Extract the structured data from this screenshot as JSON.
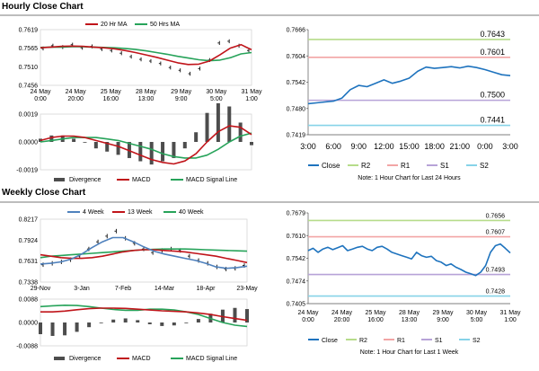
{
  "hourly": {
    "title": "Hourly Close Chart"
  },
  "weekly": {
    "title": "Weekly Close Chart"
  },
  "colors": {
    "ma_fast": "#c0141a",
    "ma_slow": "#27a35a",
    "signal": "#27a35a",
    "macd": "#c0141a",
    "close": "#1e73be",
    "r2": "#b6dc8a",
    "r1": "#f2a5a5",
    "s1": "#b7a3d8",
    "s2": "#86d3e8",
    "histogram": "#4d4d4d",
    "four_week": "#4f81bd",
    "thirteen_week": "#c0141a",
    "forty_week": "#27a35a"
  },
  "chart_data": [
    {
      "id": "hourly_price",
      "type": "line",
      "legend": [
        "20 Hr MA",
        "50 Hrs MA"
      ],
      "ytick_labels": [
        "0.7619",
        "0.7565",
        "0.7510",
        "0.7456"
      ],
      "xtick_labels": [
        [
          "24 May",
          "0:00"
        ],
        [
          "24 May",
          "20:00"
        ],
        [
          "25 May",
          "16:00"
        ],
        [
          "28 May",
          "13:00"
        ],
        [
          "29 May",
          "9:00"
        ],
        [
          "30 May",
          "5:00"
        ],
        [
          "31 May",
          "1:00"
        ]
      ],
      "ylim": [
        0.7456,
        0.7619
      ],
      "series": [
        {
          "name": "20 Hr MA",
          "values": [
            0.7566,
            0.7568,
            0.757,
            0.7571,
            0.757,
            0.7568,
            0.7566,
            0.7563,
            0.7558,
            0.7552,
            0.7545,
            0.7538,
            0.753,
            0.7522,
            0.7517,
            0.7518,
            0.7527,
            0.7545,
            0.7565,
            0.7575,
            0.756
          ]
        },
        {
          "name": "50 Hrs MA",
          "values": [
            0.7567,
            0.7568,
            0.7568,
            0.7569,
            0.7569,
            0.7568,
            0.7567,
            0.7566,
            0.7564,
            0.7561,
            0.7557,
            0.7552,
            0.7547,
            0.7541,
            0.7536,
            0.7531,
            0.7528,
            0.753,
            0.7537,
            0.7548,
            0.7552
          ]
        }
      ],
      "price": [
        0.7564,
        0.7572,
        0.7568,
        0.7575,
        0.7566,
        0.757,
        0.7562,
        0.7558,
        0.755,
        0.754,
        0.7532,
        0.7527,
        0.752,
        0.7508,
        0.75,
        0.749,
        0.7505,
        0.753,
        0.758,
        0.7585,
        0.7572,
        0.7558
      ]
    },
    {
      "id": "hourly_macd",
      "type": "line",
      "ytick_labels": [
        "0.0019",
        "0.0000",
        "-0.0019"
      ],
      "ylim": [
        -0.0019,
        0.0019
      ],
      "legend": [
        "Divergence",
        "MACD",
        "MACD Signal Line"
      ],
      "series": [
        {
          "name": "MACD",
          "values": [
            0.0001,
            0.0003,
            0.0004,
            0.0004,
            0.0003,
            0.0001,
            -0.0001,
            -0.0003,
            -0.0006,
            -0.0009,
            -0.0012,
            -0.0014,
            -0.0015,
            -0.0013,
            -0.0008,
            0.0,
            0.0007,
            0.0011,
            0.001,
            0.0005
          ]
        },
        {
          "name": "MACD Signal Line",
          "values": [
            0.0,
            0.0001,
            0.0002,
            0.0003,
            0.0003,
            0.0003,
            0.0002,
            0.0001,
            -0.0001,
            -0.0003,
            -0.0005,
            -0.0008,
            -0.001,
            -0.0011,
            -0.0011,
            -0.0009,
            -0.0005,
            0.0,
            0.0004,
            0.0006
          ]
        }
      ]
    },
    {
      "id": "hourly_levels",
      "type": "line",
      "ytick_labels": [
        "0.7666",
        "0.7604",
        "0.7542",
        "0.7480",
        "0.7419"
      ],
      "ylim": [
        0.7419,
        0.7666
      ],
      "xtick_labels": [
        "3:00",
        "6:00",
        "9:00",
        "12:00",
        "15:00",
        "18:00",
        "21:00",
        "0:00",
        "3:00"
      ],
      "levels": [
        {
          "name": "R2",
          "value": 0.7643,
          "label": "0.7643"
        },
        {
          "name": "R1",
          "value": 0.7601,
          "label": "0.7601"
        },
        {
          "name": "S1",
          "value": 0.75,
          "label": "0.7500"
        },
        {
          "name": "S2",
          "value": 0.7441,
          "label": "0.7441"
        }
      ],
      "close": [
        0.7492,
        0.7494,
        0.7496,
        0.7498,
        0.7505,
        0.7525,
        0.7535,
        0.7532,
        0.754,
        0.7548,
        0.754,
        0.7545,
        0.7552,
        0.7568,
        0.7578,
        0.7575,
        0.7577,
        0.7579,
        0.7576,
        0.758,
        0.7577,
        0.7572,
        0.7566,
        0.756,
        0.7558
      ],
      "legend": [
        "Close",
        "R2",
        "R1",
        "S1",
        "S2"
      ],
      "note": "Note: 1 Hour Chart for Last 24 Hours"
    },
    {
      "id": "weekly_price",
      "type": "line",
      "legend": [
        "4 Week",
        "13 Week",
        "40 Week"
      ],
      "ytick_labels": [
        "0.8217",
        "0.7924",
        "0.7631",
        "0.7338"
      ],
      "ylim": [
        0.7338,
        0.8217
      ],
      "xtick_labels": [
        "29-Nov",
        "3-Jan",
        "7-Feb",
        "14-Mar",
        "18-Apr",
        "23-May"
      ],
      "series": [
        {
          "name": "4 Week",
          "values": [
            0.759,
            0.76,
            0.762,
            0.766,
            0.773,
            0.782,
            0.79,
            0.796,
            0.796,
            0.79,
            0.783,
            0.777,
            0.773,
            0.77,
            0.767,
            0.764,
            0.76,
            0.755,
            0.753,
            0.754,
            0.756
          ]
        },
        {
          "name": "13 Week",
          "values": [
            0.772,
            0.77,
            0.768,
            0.767,
            0.767,
            0.768,
            0.77,
            0.773,
            0.776,
            0.778,
            0.779,
            0.779,
            0.778,
            0.777,
            0.776,
            0.774,
            0.772,
            0.77,
            0.767,
            0.764,
            0.761
          ]
        },
        {
          "name": "40 Week",
          "values": [
            0.768,
            0.77,
            0.771,
            0.772,
            0.773,
            0.774,
            0.775,
            0.776,
            0.777,
            0.778,
            0.779,
            0.7795,
            0.78,
            0.78,
            0.78,
            0.7795,
            0.779,
            0.7785,
            0.778,
            0.7775,
            0.777
          ]
        }
      ],
      "price": [
        0.758,
        0.76,
        0.762,
        0.765,
        0.77,
        0.78,
        0.79,
        0.798,
        0.805,
        0.795,
        0.788,
        0.78,
        0.775,
        0.778,
        0.78,
        0.778,
        0.77,
        0.764,
        0.76,
        0.755,
        0.752,
        0.753,
        0.757
      ]
    },
    {
      "id": "weekly_macd",
      "type": "line",
      "ytick_labels": [
        "0.0088",
        "0.0000",
        "-0.0088"
      ],
      "ylim": [
        -0.0088,
        0.0088
      ],
      "legend": [
        "Divergence",
        "MACD",
        "MACD Signal Line"
      ],
      "series": [
        {
          "name": "MACD",
          "values": [
            0.004,
            0.004,
            0.0043,
            0.0048,
            0.0052,
            0.0054,
            0.0054,
            0.0053,
            0.005,
            0.0047,
            0.0044,
            0.0042,
            0.004,
            0.0036,
            0.003,
            0.0022,
            0.0015,
            0.0008
          ]
        },
        {
          "name": "MACD Signal Line",
          "values": [
            0.006,
            0.0063,
            0.0065,
            0.0064,
            0.006,
            0.0054,
            0.0049,
            0.0046,
            0.0046,
            0.005,
            0.005,
            0.0047,
            0.004,
            0.003,
            0.0015,
            0.0,
            -0.001,
            -0.0015
          ]
        }
      ]
    },
    {
      "id": "weekly_levels",
      "type": "line",
      "ytick_labels": [
        "0.7679",
        "0.7610",
        "0.7542",
        "0.7474",
        "0.7405"
      ],
      "ylim": [
        0.7405,
        0.7679
      ],
      "xtick_labels": [
        [
          "24 May",
          "0:00"
        ],
        [
          "24 May",
          "20:00"
        ],
        [
          "25 May",
          "16:00"
        ],
        [
          "28 May",
          "13:00"
        ],
        [
          "29 May",
          "9:00"
        ],
        [
          "30 May",
          "5:00"
        ],
        [
          "31 May",
          "1:00"
        ]
      ],
      "levels": [
        {
          "name": "R2",
          "value": 0.7656,
          "label": "0.7656"
        },
        {
          "name": "R1",
          "value": 0.7607,
          "label": "0.7607"
        },
        {
          "name": "S1",
          "value": 0.7493,
          "label": "0.7493"
        },
        {
          "name": "S2",
          "value": 0.7428,
          "label": "0.7428"
        }
      ],
      "close": [
        0.7565,
        0.7572,
        0.756,
        0.757,
        0.7575,
        0.7568,
        0.7574,
        0.758,
        0.7565,
        0.757,
        0.7575,
        0.7578,
        0.757,
        0.7565,
        0.7575,
        0.7578,
        0.757,
        0.756,
        0.7555,
        0.755,
        0.7545,
        0.754,
        0.756,
        0.755,
        0.7545,
        0.7548,
        0.7535,
        0.753,
        0.752,
        0.7525,
        0.7515,
        0.7508,
        0.75,
        0.7495,
        0.749,
        0.75,
        0.752,
        0.756,
        0.758,
        0.7585,
        0.7572,
        0.7558
      ],
      "legend": [
        "Close",
        "R2",
        "R1",
        "S1",
        "S2"
      ],
      "note": "Note: 1 Hour Chart for Last 1 Week"
    }
  ]
}
